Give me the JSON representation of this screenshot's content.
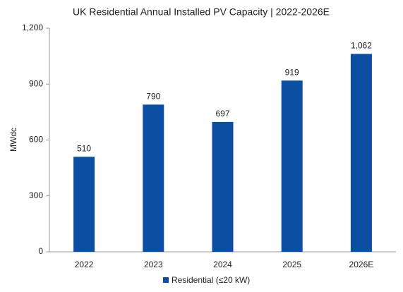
{
  "chart_data": {
    "type": "bar",
    "title": "UK Residential Annual Installed PV Capacity | 2022-2026E",
    "y_label": "MWdc",
    "categories": [
      "2022",
      "2023",
      "2024",
      "2025",
      "2026E"
    ],
    "series": [
      {
        "name": "Residential (≤20 kW)",
        "color": "#0b4ea2",
        "values": [
          510,
          790,
          697,
          919,
          1062
        ],
        "value_labels": [
          "510",
          "790",
          "697",
          "919",
          "1,062"
        ]
      }
    ],
    "ylim": [
      0,
      1200
    ],
    "yticks": [
      0,
      300,
      600,
      900,
      {
        "value": 1200,
        "label": "1,200"
      }
    ],
    "grid": false,
    "legend": "bottom"
  }
}
